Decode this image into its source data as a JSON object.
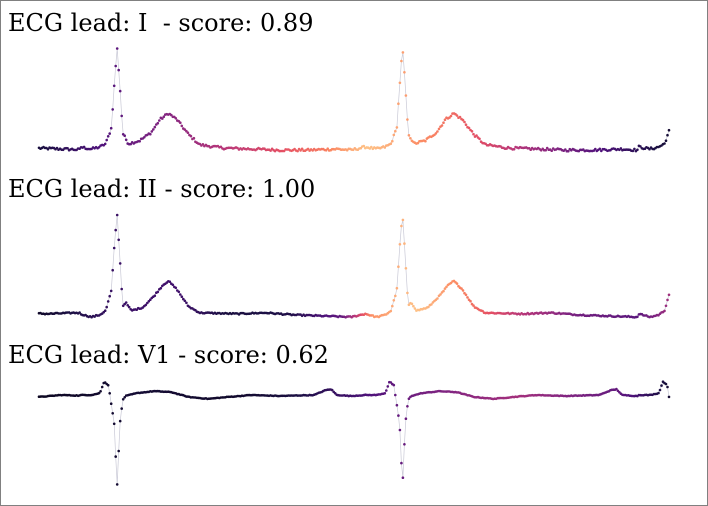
{
  "chart_data": [
    {
      "type": "scatter",
      "title": "ECG lead: I  - score: 0.89",
      "lead": "I",
      "score": 0.89,
      "axes_visible": false,
      "grid": false,
      "colormap": "magma",
      "connect_points": true,
      "cycle": [
        [
          0.0,
          0.02
        ],
        [
          0.04,
          0.0
        ],
        [
          0.07,
          0.02
        ],
        [
          0.09,
          0.05
        ],
        [
          0.11,
          0.2
        ],
        [
          0.12,
          0.6
        ],
        [
          0.13,
          0.97
        ],
        [
          0.14,
          0.6
        ],
        [
          0.15,
          0.15
        ],
        [
          0.17,
          0.05
        ],
        [
          0.21,
          0.08
        ],
        [
          0.25,
          0.16
        ],
        [
          0.28,
          0.28
        ],
        [
          0.31,
          0.34
        ],
        [
          0.34,
          0.28
        ],
        [
          0.38,
          0.14
        ],
        [
          0.42,
          0.04
        ],
        [
          0.5,
          0.01
        ],
        [
          0.6,
          0.0
        ],
        [
          0.7,
          -0.01
        ],
        [
          0.8,
          -0.01
        ],
        [
          0.9,
          0.0
        ],
        [
          0.95,
          -0.01
        ],
        [
          1.0,
          0.02
        ]
      ],
      "segments": [
        {
          "start": 0.0,
          "end": 0.065,
          "cycle_from": 0.52
        },
        {
          "start": 0.065,
          "end": 0.518,
          "cycle_from": 0.0
        },
        {
          "start": 0.518,
          "end": 0.952,
          "cycle_from": 0.0
        },
        {
          "start": 0.952,
          "end": 1.0,
          "cycle_from": 0.0
        }
      ],
      "point_count": 420,
      "noise": 0.012,
      "attention": [
        [
          0.0,
          0.12
        ],
        [
          0.12,
          0.28
        ],
        [
          0.25,
          0.45
        ],
        [
          0.35,
          0.58
        ],
        [
          0.45,
          0.72
        ],
        [
          0.52,
          0.88
        ],
        [
          0.58,
          0.8
        ],
        [
          0.65,
          0.7
        ],
        [
          0.72,
          0.58
        ],
        [
          0.8,
          0.42
        ],
        [
          0.9,
          0.24
        ],
        [
          1.0,
          0.1
        ]
      ]
    },
    {
      "type": "scatter",
      "title": "ECG lead: II - score: 1.00",
      "lead": "II",
      "score": 1.0,
      "axes_visible": false,
      "grid": false,
      "colormap": "magma",
      "connect_points": true,
      "cycle": [
        [
          0.0,
          0.03
        ],
        [
          0.04,
          0.0
        ],
        [
          0.07,
          0.02
        ],
        [
          0.09,
          0.06
        ],
        [
          0.11,
          0.25
        ],
        [
          0.12,
          0.65
        ],
        [
          0.13,
          0.98
        ],
        [
          0.14,
          0.55
        ],
        [
          0.15,
          0.1
        ],
        [
          0.16,
          0.14
        ],
        [
          0.18,
          0.06
        ],
        [
          0.22,
          0.09
        ],
        [
          0.26,
          0.2
        ],
        [
          0.29,
          0.3
        ],
        [
          0.31,
          0.34
        ],
        [
          0.34,
          0.26
        ],
        [
          0.38,
          0.1
        ],
        [
          0.42,
          0.04
        ],
        [
          0.55,
          0.03
        ],
        [
          0.65,
          0.04
        ],
        [
          0.75,
          0.02
        ],
        [
          0.85,
          0.01
        ],
        [
          0.95,
          0.0
        ],
        [
          1.0,
          0.03
        ]
      ],
      "segments": [
        {
          "start": 0.0,
          "end": 0.065,
          "cycle_from": 0.52
        },
        {
          "start": 0.065,
          "end": 0.518,
          "cycle_from": 0.0
        },
        {
          "start": 0.518,
          "end": 0.952,
          "cycle_from": 0.0
        },
        {
          "start": 0.952,
          "end": 1.0,
          "cycle_from": 0.0
        }
      ],
      "point_count": 420,
      "noise": 0.006,
      "attention": [
        [
          0.0,
          0.08
        ],
        [
          0.12,
          0.2
        ],
        [
          0.22,
          0.22
        ],
        [
          0.3,
          0.12
        ],
        [
          0.4,
          0.14
        ],
        [
          0.48,
          0.3
        ],
        [
          0.53,
          0.78
        ],
        [
          0.6,
          0.88
        ],
        [
          0.68,
          0.72
        ],
        [
          0.76,
          0.52
        ],
        [
          0.86,
          0.34
        ],
        [
          0.95,
          0.28
        ],
        [
          1.0,
          0.45
        ]
      ]
    },
    {
      "type": "scatter",
      "title": "ECG lead: V1 - score: 0.62",
      "lead": "V1",
      "score": 0.62,
      "axes_visible": false,
      "grid": false,
      "colormap": "magma",
      "connect_points": true,
      "cycle": [
        [
          0.0,
          0.0
        ],
        [
          0.04,
          0.0
        ],
        [
          0.07,
          0.02
        ],
        [
          0.085,
          0.14
        ],
        [
          0.1,
          0.1
        ],
        [
          0.12,
          -0.3
        ],
        [
          0.13,
          -0.96
        ],
        [
          0.14,
          -0.3
        ],
        [
          0.15,
          -0.05
        ],
        [
          0.16,
          -0.01
        ],
        [
          0.2,
          0.02
        ],
        [
          0.26,
          0.04
        ],
        [
          0.32,
          0.03
        ],
        [
          0.38,
          -0.02
        ],
        [
          0.45,
          -0.04
        ],
        [
          0.52,
          -0.02
        ],
        [
          0.6,
          0.0
        ],
        [
          0.7,
          -0.01
        ],
        [
          0.82,
          0.0
        ],
        [
          0.86,
          0.05
        ],
        [
          0.88,
          0.06
        ],
        [
          0.9,
          0.0
        ],
        [
          0.95,
          -0.01
        ],
        [
          1.0,
          0.0
        ]
      ],
      "segments": [
        {
          "start": 0.0,
          "end": 0.065,
          "cycle_from": 0.52
        },
        {
          "start": 0.065,
          "end": 0.518,
          "cycle_from": 0.0
        },
        {
          "start": 0.518,
          "end": 0.952,
          "cycle_from": 0.0
        },
        {
          "start": 0.952,
          "end": 1.0,
          "cycle_from": 0.0
        }
      ],
      "point_count": 420,
      "noise": 0.003,
      "attention": [
        [
          0.0,
          0.06
        ],
        [
          0.15,
          0.1
        ],
        [
          0.3,
          0.08
        ],
        [
          0.4,
          0.12
        ],
        [
          0.5,
          0.22
        ],
        [
          0.6,
          0.34
        ],
        [
          0.7,
          0.42
        ],
        [
          0.76,
          0.46
        ],
        [
          0.84,
          0.38
        ],
        [
          0.92,
          0.3
        ],
        [
          1.0,
          0.1
        ]
      ]
    }
  ]
}
